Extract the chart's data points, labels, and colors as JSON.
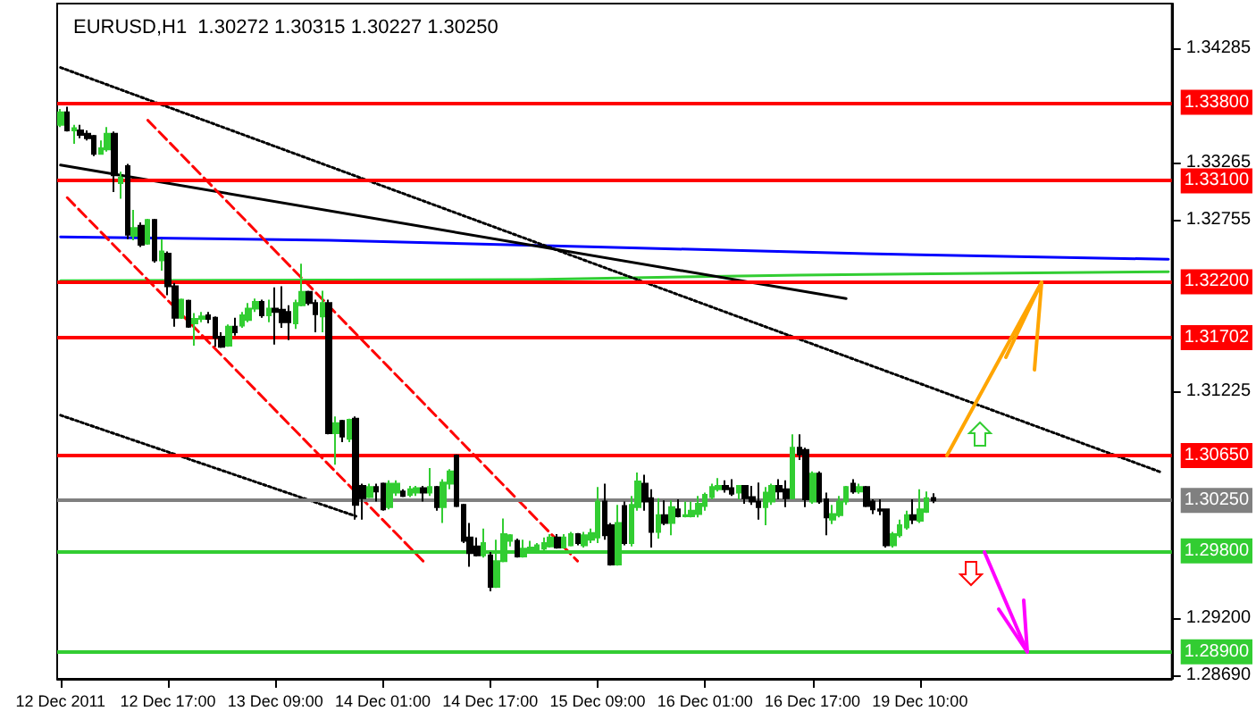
{
  "chart_data": {
    "type": "candlestick",
    "title": "EURUSD,H1  1.30272 1.30315 1.30227 1.30250",
    "categories": [
      "12 Dec 2011",
      null,
      null,
      null,
      null,
      null,
      null,
      null,
      null,
      null,
      null,
      null,
      null,
      null,
      null,
      null,
      "12 Dec 17:00",
      null,
      null,
      null,
      null,
      null,
      null,
      null,
      null,
      null,
      null,
      null,
      null,
      null,
      null,
      null,
      "13 Dec 09:00",
      null,
      null,
      null,
      null,
      null,
      null,
      null,
      null,
      null,
      null,
      null,
      null,
      null,
      null,
      null,
      "14 Dec 01:00",
      null,
      null,
      null,
      null,
      null,
      null,
      null,
      null,
      null,
      null,
      null,
      null,
      null,
      null,
      null,
      "14 Dec 17:00",
      null,
      null,
      null,
      null,
      null,
      null,
      null,
      null,
      null,
      null,
      null,
      null,
      null,
      null,
      null,
      "15 Dec 09:00",
      null,
      null,
      null,
      null,
      null,
      null,
      null,
      null,
      null,
      null,
      null,
      null,
      null,
      null,
      null,
      "16 Dec 01:00",
      null,
      null,
      null,
      null,
      null,
      null,
      null,
      null,
      null,
      null,
      null,
      null,
      null,
      null,
      null,
      "16 Dec 17:00",
      null,
      null,
      null,
      null,
      null,
      null,
      null,
      null,
      null,
      null,
      null,
      null,
      null,
      null,
      null,
      "19 Dec 10:00",
      null,
      null,
      null,
      null,
      null,
      null,
      null,
      null,
      null,
      null,
      null,
      null,
      null,
      null,
      null,
      null,
      null,
      null,
      null,
      null,
      null,
      null,
      null,
      null,
      null,
      null,
      null,
      null,
      null,
      null,
      null,
      null,
      null,
      null,
      null,
      null,
      null
    ],
    "ohlc": [
      [
        1.336,
        1.3374,
        1.3358,
        1.3371
      ],
      [
        1.3371,
        1.3376,
        1.3354,
        1.3355
      ],
      [
        1.3355,
        1.336,
        1.3343,
        1.3357
      ],
      [
        1.3355,
        1.336,
        1.3348,
        1.3351
      ],
      [
        1.3352,
        1.3355,
        1.3346,
        1.3348
      ],
      [
        1.335,
        1.3351,
        1.3332,
        1.3334
      ],
      [
        1.3334,
        1.3346,
        1.3334,
        1.3339
      ],
      [
        1.3338,
        1.3358,
        1.3336,
        1.3352
      ],
      [
        1.3352,
        1.3354,
        1.33,
        1.3315
      ],
      [
        1.3308,
        1.3318,
        1.3294,
        1.3313
      ],
      [
        1.3323,
        1.3325,
        1.3258,
        1.3262
      ],
      [
        1.3261,
        1.3284,
        1.3257,
        1.3268
      ],
      [
        1.327,
        1.3273,
        1.3251,
        1.3253
      ],
      [
        1.3254,
        1.3276,
        1.3253,
        1.3275
      ],
      [
        1.3275,
        1.3276,
        1.3237,
        1.3239
      ],
      [
        1.3239,
        1.3258,
        1.323,
        1.3247
      ],
      [
        1.3245,
        1.3247,
        1.3208,
        1.3216
      ],
      [
        1.3216,
        1.3219,
        1.318,
        1.3188
      ],
      [
        1.3188,
        1.3205,
        1.3187,
        1.3204
      ],
      [
        1.3203,
        1.3204,
        1.3179,
        1.318
      ],
      [
        1.3183,
        1.3192,
        1.3163,
        1.3187
      ],
      [
        1.3187,
        1.3193,
        1.3184,
        1.3189
      ],
      [
        1.319,
        1.3193,
        1.3183,
        1.3187
      ],
      [
        1.3188,
        1.3189,
        1.3162,
        1.317
      ],
      [
        1.3171,
        1.3175,
        1.3161,
        1.3162
      ],
      [
        1.3163,
        1.3182,
        1.3162,
        1.318
      ],
      [
        1.318,
        1.3188,
        1.3172,
        1.3175
      ],
      [
        1.3181,
        1.3193,
        1.3179,
        1.319
      ],
      [
        1.3186,
        1.3201,
        1.3184,
        1.3196
      ],
      [
        1.3196,
        1.3205,
        1.3193,
        1.3202
      ],
      [
        1.3202,
        1.3204,
        1.3188,
        1.319
      ],
      [
        1.319,
        1.3204,
        1.3184,
        1.3196
      ],
      [
        1.3196,
        1.3215,
        1.3164,
        1.3193
      ],
      [
        1.3195,
        1.3216,
        1.3179,
        1.3184
      ],
      [
        1.3193,
        1.3199,
        1.3168,
        1.3184
      ],
      [
        1.3183,
        1.3204,
        1.3178,
        1.3201
      ],
      [
        1.3199,
        1.3236,
        1.3198,
        1.3211
      ],
      [
        1.3211,
        1.3212,
        1.3199,
        1.3201
      ],
      [
        1.3201,
        1.3204,
        1.3175,
        1.3191
      ],
      [
        1.3189,
        1.3212,
        1.3175,
        1.3201
      ],
      [
        1.3201,
        1.3204,
        1.3084,
        1.3085
      ],
      [
        1.3085,
        1.31,
        1.3057,
        1.3094
      ],
      [
        1.3096,
        1.3097,
        1.3077,
        1.3082
      ],
      [
        1.308,
        1.3098,
        1.3077,
        1.3097
      ],
      [
        1.3098,
        1.31,
        1.3008,
        1.3021
      ],
      [
        1.3038,
        1.304,
        1.3008,
        1.3027
      ],
      [
        1.3028,
        1.304,
        1.3027,
        1.3037
      ],
      [
        1.3037,
        1.304,
        1.3024,
        1.3033
      ],
      [
        1.304,
        1.3041,
        1.3016,
        1.3017
      ],
      [
        1.3019,
        1.3043,
        1.3017,
        1.304
      ],
      [
        1.3032,
        1.3043,
        1.3029,
        1.304
      ],
      [
        1.3033,
        1.3035,
        1.3028,
        1.3029
      ],
      [
        1.303,
        1.3038,
        1.3028,
        1.3035
      ],
      [
        1.3032,
        1.3038,
        1.3029,
        1.3036
      ],
      [
        1.3036,
        1.3038,
        1.3024,
        1.3032
      ],
      [
        1.3032,
        1.3054,
        1.3029,
        1.3037
      ],
      [
        1.3037,
        1.3038,
        1.3016,
        1.3019
      ],
      [
        1.3019,
        1.3044,
        1.3005,
        1.3041
      ],
      [
        1.304,
        1.3053,
        1.3035,
        1.3051
      ],
      [
        1.3065,
        1.3066,
        1.3019,
        1.302
      ],
      [
        1.3021,
        1.3022,
        1.2987,
        1.2989
      ],
      [
        1.2992,
        1.3005,
        1.2966,
        1.2978
      ],
      [
        1.2984,
        1.2992,
        1.2975,
        1.2976
      ],
      [
        1.2976,
        1.3,
        1.2974,
        1.2987
      ],
      [
        1.2976,
        1.2979,
        1.2944,
        1.2948
      ],
      [
        1.2948,
        1.299,
        1.2947,
        1.2971
      ],
      [
        1.2971,
        1.3009,
        1.297,
        1.2995
      ],
      [
        1.2989,
        1.2995,
        1.2984,
        1.2994
      ],
      [
        1.2989,
        1.2991,
        1.2974,
        1.2975
      ],
      [
        1.2975,
        1.299,
        1.2974,
        1.2982
      ],
      [
        1.2979,
        1.2989,
        1.2978,
        1.2983
      ],
      [
        1.298,
        1.2987,
        1.2979,
        1.2985
      ],
      [
        1.2982,
        1.2992,
        1.2979,
        1.2987
      ],
      [
        1.2984,
        1.2995,
        1.2983,
        1.2992
      ],
      [
        1.2992,
        1.2995,
        1.2982,
        1.2983
      ],
      [
        1.2983,
        1.2995,
        1.2982,
        1.2992
      ],
      [
        1.2985,
        1.2997,
        1.2984,
        1.2995
      ],
      [
        1.2995,
        1.2996,
        1.2985,
        1.2987
      ],
      [
        1.2985,
        1.2997,
        1.2983,
        1.2994
      ],
      [
        1.299,
        1.3,
        1.2987,
        1.2996
      ],
      [
        1.2992,
        1.3037,
        1.2987,
        1.3024
      ],
      [
        1.3024,
        1.304,
        1.299,
        1.2994
      ],
      [
        1.3003,
        1.3005,
        1.2967,
        1.2968
      ],
      [
        1.2968,
        1.3021,
        1.2967,
        1.3005
      ],
      [
        1.302,
        1.3024,
        1.2985,
        1.2987
      ],
      [
        1.2987,
        1.3029,
        1.2984,
        1.3021
      ],
      [
        1.3019,
        1.305,
        1.3016,
        1.3042
      ],
      [
        1.304,
        1.3048,
        1.3016,
        1.3024
      ],
      [
        1.3027,
        1.3035,
        1.2983,
        1.2997
      ],
      [
        1.2997,
        1.3027,
        1.2991,
        1.3012
      ],
      [
        1.3012,
        1.3025,
        1.3003,
        1.3005
      ],
      [
        1.3005,
        1.3025,
        1.2994,
        1.3019
      ],
      [
        1.3017,
        1.3026,
        1.301,
        1.3011
      ],
      [
        1.3011,
        1.3024,
        1.301,
        1.3012
      ],
      [
        1.3011,
        1.3024,
        1.301,
        1.3016
      ],
      [
        1.3013,
        1.3029,
        1.301,
        1.3022
      ],
      [
        1.302,
        1.3032,
        1.3016,
        1.303
      ],
      [
        1.3028,
        1.304,
        1.3026,
        1.3037
      ],
      [
        1.3035,
        1.3045,
        1.3033,
        1.3038
      ],
      [
        1.3038,
        1.3043,
        1.3032,
        1.3035
      ],
      [
        1.3036,
        1.3044,
        1.3029,
        1.3031
      ],
      [
        1.3032,
        1.3038,
        1.3026,
        1.3038
      ],
      [
        1.3038,
        1.3038,
        1.3022,
        1.3027
      ],
      [
        1.3028,
        1.3038,
        1.3021,
        1.3024
      ],
      [
        1.3024,
        1.3041,
        1.3008,
        1.3019
      ],
      [
        1.3019,
        1.3037,
        1.3003,
        1.3032
      ],
      [
        1.3024,
        1.304,
        1.3021,
        1.3038
      ],
      [
        1.3038,
        1.3044,
        1.3026,
        1.3033
      ],
      [
        1.3035,
        1.3043,
        1.3019,
        1.3027
      ],
      [
        1.3027,
        1.3084,
        1.3026,
        1.3072
      ],
      [
        1.3072,
        1.3084,
        1.3061,
        1.3066
      ],
      [
        1.307,
        1.3072,
        1.3019,
        1.3026
      ],
      [
        1.3024,
        1.3051,
        1.3022,
        1.3049
      ],
      [
        1.3049,
        1.3051,
        1.3022,
        1.3024
      ],
      [
        1.3026,
        1.3032,
        1.2994,
        1.301
      ],
      [
        1.3008,
        1.3021,
        1.3004,
        1.3013
      ],
      [
        1.3012,
        1.3029,
        1.301,
        1.3024
      ],
      [
        1.3024,
        1.3038,
        1.3021,
        1.3037
      ],
      [
        1.304,
        1.3044,
        1.3031,
        1.3033
      ],
      [
        1.3033,
        1.304,
        1.3031,
        1.3037
      ],
      [
        1.3037,
        1.3038,
        1.3019,
        1.302
      ],
      [
        1.3024,
        1.3026,
        1.3013,
        1.3017
      ],
      [
        1.3017,
        1.3026,
        1.3012,
        1.3016
      ],
      [
        1.3017,
        1.3017,
        1.2983,
        1.2985
      ],
      [
        1.2985,
        1.2997,
        1.2983,
        1.2995
      ],
      [
        1.2994,
        1.3008,
        1.2992,
        1.3003
      ],
      [
        1.3001,
        1.3016,
        1.2999,
        1.3012
      ],
      [
        1.3012,
        1.3026,
        1.3004,
        1.3008
      ],
      [
        1.3007,
        1.3035,
        1.3005,
        1.3017
      ],
      [
        1.3015,
        1.3033,
        1.3014,
        1.3027
      ],
      [
        1.30272,
        1.30315,
        1.30227,
        1.3025
      ],
      null,
      null,
      null,
      null,
      null,
      null,
      null,
      null,
      null,
      null,
      null,
      null,
      null,
      null,
      null,
      null,
      null,
      null,
      null,
      null,
      null,
      null,
      null,
      null,
      null,
      null,
      null,
      null,
      null,
      null,
      null,
      null,
      null,
      null,
      null
    ],
    "series": [
      {
        "type": "line",
        "color": "#0000ff",
        "line_style": "solid",
        "values": [
          1.326,
          null,
          null,
          null,
          null,
          null,
          null,
          null,
          null,
          null,
          null,
          null,
          null,
          null,
          null,
          null,
          null,
          null,
          null,
          null,
          null,
          null,
          null,
          null,
          null,
          null,
          null,
          null,
          null,
          null,
          null,
          null,
          null,
          null,
          null,
          null,
          null,
          null,
          null,
          null,
          1.3257,
          null,
          null,
          null,
          null,
          null,
          null,
          null,
          null,
          null,
          null,
          null,
          null,
          null,
          null,
          null,
          null,
          null,
          null,
          null,
          null,
          null,
          null,
          null,
          null,
          null,
          null,
          null,
          null,
          null,
          null,
          null,
          null,
          null,
          null,
          null,
          null,
          null,
          null,
          null,
          1.3251,
          null,
          null,
          null,
          null,
          null,
          null,
          null,
          null,
          null,
          null,
          null,
          null,
          null,
          null,
          null,
          null,
          null,
          null,
          null,
          null,
          null,
          null,
          null,
          null,
          null,
          null,
          null,
          null,
          null,
          null,
          null,
          null,
          null,
          null,
          null,
          null,
          null,
          null,
          null,
          1.3245,
          null,
          null,
          null,
          null,
          null,
          null,
          null,
          null,
          null,
          null,
          null,
          null,
          null,
          null,
          null,
          null,
          null,
          null,
          null,
          null,
          null,
          null,
          null,
          null,
          null,
          null,
          null,
          null,
          null,
          null,
          null,
          null,
          null,
          null,
          null,
          null,
          null,
          null,
          null,
          null,
          null,
          null,
          null,
          null,
          1.324
        ]
      },
      {
        "type": "line",
        "color": "#32cd32",
        "line_style": "solid",
        "values": [
          1.3221,
          null,
          null,
          null,
          null,
          null,
          null,
          null,
          null,
          null,
          null,
          null,
          null,
          null,
          null,
          null,
          null,
          null,
          null,
          null,
          null,
          null,
          null,
          null,
          null,
          null,
          null,
          null,
          null,
          null,
          null,
          null,
          null,
          null,
          null,
          null,
          null,
          null,
          null,
          null,
          null,
          null,
          null,
          null,
          null,
          null,
          null,
          null,
          null,
          null,
          null,
          null,
          null,
          null,
          null,
          null,
          null,
          null,
          null,
          null,
          null,
          null,
          null,
          null,
          null,
          null,
          null,
          null,
          null,
          null,
          1.3222,
          null,
          null,
          null,
          null,
          null,
          null,
          null,
          null,
          null,
          null,
          null,
          null,
          null,
          null,
          null,
          null,
          null,
          null,
          null,
          null,
          null,
          null,
          null,
          null,
          null,
          null,
          null,
          null,
          null,
          null,
          null,
          null,
          null,
          null,
          null,
          null,
          null,
          null,
          null,
          1.3226,
          null,
          null,
          null,
          null,
          null,
          null,
          null,
          null,
          null,
          null,
          null,
          null,
          null,
          null,
          null,
          null,
          null,
          null,
          null,
          null,
          null,
          null,
          null,
          null,
          null,
          null,
          null,
          null,
          null,
          null,
          null,
          null,
          null,
          null,
          null,
          null,
          null,
          null,
          null,
          null,
          null,
          null,
          null,
          null,
          null,
          null,
          null,
          null,
          null,
          null,
          null,
          null,
          null,
          null,
          1.3229
        ]
      },
      {
        "type": "line",
        "color": "#000000",
        "line_style": "solid",
        "values": [
          1.3324,
          null,
          null,
          null,
          null,
          null,
          null,
          null,
          null,
          null,
          null,
          null,
          null,
          null,
          null,
          null,
          null,
          null,
          null,
          null,
          null,
          null,
          null,
          null,
          null,
          null,
          null,
          null,
          null,
          null,
          null,
          null,
          null,
          null,
          null,
          null,
          null,
          null,
          null,
          null,
          null,
          null,
          null,
          null,
          null,
          null,
          null,
          null,
          null,
          null,
          null,
          null,
          null,
          null,
          null,
          null,
          null,
          null,
          null,
          null,
          null,
          null,
          null,
          null,
          null,
          null,
          null,
          null,
          null,
          null,
          null,
          null,
          null,
          null,
          null,
          null,
          null,
          null,
          null,
          null,
          null,
          null,
          null,
          null,
          null,
          null,
          null,
          null,
          null,
          null,
          null,
          null,
          null,
          null,
          null,
          null,
          null,
          null,
          null,
          null,
          null,
          null,
          null,
          null,
          null,
          null,
          null,
          null,
          null,
          null,
          null,
          null,
          null,
          null,
          null,
          null,
          null,
          1.3205,
          null,
          null,
          null,
          null,
          null,
          null,
          null,
          null,
          null,
          null,
          null,
          null,
          null,
          null,
          null,
          null,
          null,
          null,
          null,
          null,
          null,
          null,
          null,
          null,
          null,
          null,
          null,
          null,
          null,
          null,
          null,
          null,
          null,
          null,
          null,
          null,
          null,
          null,
          null,
          null,
          null,
          null,
          null,
          null,
          null,
          null,
          null,
          null
        ]
      },
      {
        "type": "line",
        "color": "#000000",
        "line_style": "dotted",
        "values": [
          1.3411,
          null,
          null,
          null,
          null,
          null,
          null,
          null,
          null,
          null,
          null,
          null,
          null,
          null,
          null,
          null,
          null,
          null,
          null,
          null,
          null,
          null,
          null,
          null,
          null,
          null,
          null,
          null,
          null,
          null,
          null,
          null,
          null,
          null,
          null,
          null,
          null,
          null,
          null,
          null,
          null,
          null,
          null,
          null,
          null,
          null,
          null,
          null,
          null,
          null,
          null,
          null,
          null,
          null,
          null,
          null,
          null,
          null,
          null,
          null,
          null,
          null,
          null,
          null,
          null,
          null,
          null,
          null,
          null,
          null,
          null,
          null,
          null,
          null,
          null,
          null,
          null,
          null,
          null,
          null,
          null,
          null,
          null,
          null,
          null,
          null,
          null,
          null,
          null,
          null,
          null,
          null,
          null,
          null,
          null,
          null,
          null,
          null,
          null,
          null,
          null,
          null,
          null,
          null,
          null,
          null,
          null,
          null,
          null,
          null,
          null,
          null,
          null,
          null,
          null,
          null,
          null,
          null,
          null,
          null,
          null,
          null,
          null,
          null,
          null,
          null,
          null,
          null,
          null,
          null,
          null,
          null,
          null,
          null,
          null,
          null,
          null,
          null,
          null,
          null,
          null,
          null,
          null,
          null,
          null,
          null,
          null,
          null,
          null,
          null,
          null,
          null,
          null,
          null,
          null,
          null,
          null,
          null,
          null,
          null,
          null,
          null,
          null,
          null,
          1.305,
          null
        ]
      },
      {
        "type": "line",
        "color": "#000000",
        "line_style": "dotted",
        "values": [
          1.3101,
          null,
          null,
          null,
          null,
          null,
          null,
          null,
          null,
          null,
          null,
          null,
          null,
          null,
          null,
          null,
          null,
          null,
          null,
          null,
          null,
          null,
          null,
          null,
          null,
          null,
          null,
          null,
          null,
          null,
          null,
          null,
          null,
          null,
          null,
          null,
          null,
          null,
          null,
          null,
          null,
          null,
          null,
          null,
          1.3011,
          null,
          null,
          null,
          null,
          null,
          null,
          null,
          null,
          null,
          null,
          null,
          null,
          null,
          null,
          null,
          null,
          null,
          null,
          null,
          null,
          null,
          null,
          null,
          null,
          null,
          null,
          null,
          null,
          null,
          null,
          null,
          null,
          null,
          null,
          null,
          null,
          null,
          null,
          null,
          null,
          null,
          null,
          null,
          null,
          null,
          null,
          null,
          null,
          null,
          null,
          null,
          null,
          null,
          null,
          null,
          null,
          null,
          null,
          null,
          null,
          null,
          null,
          null,
          null,
          null,
          null,
          null,
          null,
          null,
          null,
          null,
          null,
          null,
          null,
          null,
          null,
          null,
          null,
          null,
          null,
          null,
          null,
          null,
          null,
          null,
          null,
          null,
          null,
          null,
          null,
          null,
          null,
          null,
          null,
          null,
          null,
          null,
          null,
          null,
          null,
          null,
          null,
          null,
          null,
          null,
          null,
          null,
          null,
          null,
          null,
          null,
          null,
          null,
          null,
          null,
          null,
          null,
          null,
          null,
          null,
          null
        ]
      },
      {
        "type": "line",
        "color": "#ff0000",
        "line_style": "dashed",
        "values": [
          null,
          null,
          null,
          null,
          null,
          null,
          null,
          null,
          null,
          null,
          null,
          null,
          null,
          1.3364,
          null,
          null,
          null,
          null,
          null,
          null,
          null,
          null,
          null,
          null,
          null,
          null,
          null,
          null,
          null,
          null,
          null,
          null,
          null,
          null,
          null,
          null,
          null,
          null,
          null,
          null,
          null,
          null,
          null,
          null,
          null,
          null,
          null,
          null,
          null,
          null,
          null,
          null,
          null,
          null,
          null,
          null,
          null,
          null,
          null,
          null,
          null,
          null,
          null,
          null,
          null,
          null,
          null,
          null,
          null,
          null,
          null,
          null,
          null,
          null,
          null,
          null,
          null,
          1.2971,
          null,
          null,
          null,
          null,
          null,
          null,
          null,
          null,
          null,
          null,
          null,
          null,
          null,
          null,
          null,
          null,
          null,
          null,
          null,
          null,
          null,
          null,
          null,
          null,
          null,
          null,
          null,
          null,
          null,
          null,
          null,
          null,
          null,
          null,
          null,
          null,
          null,
          null,
          null,
          null,
          null,
          null,
          null,
          null,
          null,
          null,
          null,
          null,
          null,
          null,
          null,
          null,
          null,
          null,
          null,
          null,
          null,
          null,
          null,
          null,
          null,
          null,
          null,
          null,
          null,
          null,
          null,
          null,
          null,
          null,
          null,
          null,
          null,
          null,
          null,
          null,
          null,
          null,
          null,
          null,
          null,
          null,
          null,
          null,
          null,
          null,
          null,
          null
        ]
      },
      {
        "type": "line",
        "color": "#ff0000",
        "line_style": "dashed",
        "values": [
          null,
          1.3295,
          null,
          null,
          null,
          null,
          null,
          null,
          null,
          null,
          null,
          null,
          null,
          null,
          null,
          null,
          null,
          null,
          null,
          null,
          null,
          null,
          null,
          null,
          null,
          null,
          null,
          null,
          null,
          null,
          null,
          null,
          null,
          null,
          null,
          null,
          null,
          null,
          null,
          null,
          null,
          null,
          null,
          null,
          null,
          null,
          null,
          null,
          null,
          null,
          null,
          null,
          null,
          null,
          1.2971,
          null,
          null,
          null,
          null,
          null,
          null,
          null,
          null,
          null,
          null,
          null,
          null,
          null,
          null,
          null,
          null,
          null,
          null,
          null,
          null,
          null,
          null,
          null,
          null,
          null,
          null,
          null,
          null,
          null,
          null,
          null,
          null,
          null,
          null,
          null,
          null,
          null,
          null,
          null,
          null,
          null,
          null,
          null,
          null,
          null,
          null,
          null,
          null,
          null,
          null,
          null,
          null,
          null,
          null,
          null,
          null,
          null,
          null,
          null,
          null,
          null,
          null,
          null,
          null,
          null,
          null,
          null,
          null,
          null,
          null,
          null,
          null,
          null,
          null,
          null,
          null,
          null,
          null,
          null,
          null,
          null,
          null,
          null,
          null,
          null,
          null,
          null,
          null,
          null,
          null,
          null,
          null,
          null,
          null,
          null,
          null,
          null,
          null,
          null,
          null,
          null,
          null,
          null,
          null,
          null,
          null,
          null,
          null,
          null,
          null,
          null
        ]
      }
    ],
    "ylim": [
      1.2866,
      1.3468
    ],
    "yticks": [
      {
        "value": 1.2869,
        "label": "1.28690"
      },
      {
        "value": 1.292,
        "label": "1.29200"
      },
      1.31225,
      1.32755,
      1.33265,
      1.34285
    ],
    "ref_lines": [
      {
        "axis": "y",
        "value": 1.338,
        "label": "1.33800",
        "color": "#ff0000"
      },
      {
        "axis": "y",
        "value": 1.331,
        "label": "1.33100",
        "color": "#ff0000"
      },
      {
        "axis": "y",
        "value": 1.322,
        "label": "1.32200",
        "color": "#ff0000"
      },
      {
        "axis": "y",
        "value": 1.31702,
        "label": "1.31702",
        "color": "#ff0000"
      },
      {
        "axis": "y",
        "value": 1.3065,
        "label": "1.30650",
        "color": "#ff0000"
      },
      {
        "axis": "y",
        "value": 1.3025,
        "label": "1.30250",
        "color": "#808080"
      },
      {
        "axis": "y",
        "value": 1.298,
        "label": "1.29800",
        "color": "#32cd32"
      },
      {
        "axis": "y",
        "value": 1.289,
        "label": "1.28900",
        "color": "#32cd32"
      }
    ],
    "marker": "none",
    "grid": false
  }
}
